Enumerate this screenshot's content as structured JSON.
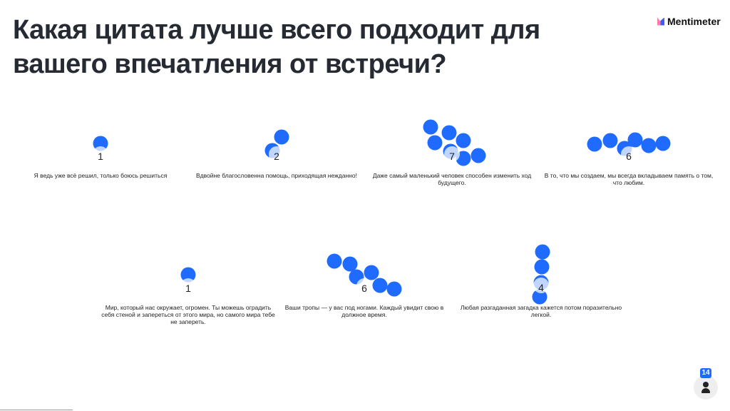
{
  "title": "Какая цитата лучше всего подходит для вашего впечатления от встречи?",
  "brand": "Mentimeter",
  "colors": {
    "bubble": "#1f6bff",
    "badge": "#1f6bff"
  },
  "options": [
    {
      "label": "Я ведь уже всё решил, только боюсь решиться",
      "count": 1
    },
    {
      "label": "Вдвойне благословенна помощь, приходящая нежданно!",
      "count": 2
    },
    {
      "label": "Даже самый маленький человек способен изменить ход будущего.",
      "count": 7
    },
    {
      "label": "В то, что мы создаем, мы всегда вкладываем память о том, что любим.",
      "count": 6
    },
    {
      "label": "Мир, который нас окружает, огромен. Ты можешь оградить себя стеной и запереться от этого мира, но самого мира тебе не запереть.",
      "count": 1
    },
    {
      "label": "Ваши тропы — у вас под ногами. Каждый увидит свою в должное время.",
      "count": 6
    },
    {
      "label": "Любая разгаданная загадка кажется потом поразительно легкой.",
      "count": 4
    }
  ],
  "participants": {
    "count": "14",
    "icon": "person-icon"
  }
}
